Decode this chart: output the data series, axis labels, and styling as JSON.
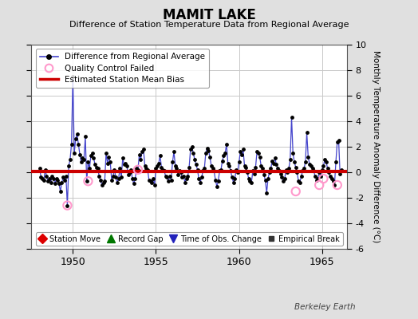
{
  "title": "MAMIT LAKE",
  "subtitle": "Difference of Station Temperature Data from Regional Average",
  "ylabel_right": "Monthly Temperature Anomaly Difference (°C)",
  "bias_value": 0.05,
  "xlim": [
    1947.5,
    1966.5
  ],
  "ylim": [
    -6,
    10
  ],
  "yticks": [
    -6,
    -4,
    -2,
    0,
    2,
    4,
    6,
    8,
    10
  ],
  "xticks": [
    1950,
    1955,
    1960,
    1965
  ],
  "background_color": "#e0e0e0",
  "plot_bg_color": "#ffffff",
  "grid_color": "#c8c8c8",
  "line_color": "#4444cc",
  "dot_color": "#000000",
  "bias_color": "#cc0000",
  "qc_color": "#ff99cc",
  "watermark": "Berkeley Earth",
  "data_x": [
    1948.0,
    1948.083,
    1948.167,
    1948.25,
    1948.333,
    1948.417,
    1948.5,
    1948.583,
    1948.667,
    1948.75,
    1948.833,
    1948.917,
    1949.0,
    1949.083,
    1949.167,
    1949.25,
    1949.333,
    1949.417,
    1949.5,
    1949.583,
    1949.667,
    1949.75,
    1949.833,
    1949.917,
    1950.0,
    1950.083,
    1950.167,
    1950.25,
    1950.333,
    1950.417,
    1950.5,
    1950.583,
    1950.667,
    1950.75,
    1950.833,
    1950.917,
    1951.0,
    1951.083,
    1951.167,
    1951.25,
    1951.333,
    1951.417,
    1951.5,
    1951.583,
    1951.667,
    1951.75,
    1951.833,
    1951.917,
    1952.0,
    1952.083,
    1952.167,
    1952.25,
    1952.333,
    1952.417,
    1952.5,
    1952.583,
    1952.667,
    1952.75,
    1952.833,
    1952.917,
    1953.0,
    1953.083,
    1953.167,
    1953.25,
    1953.333,
    1953.417,
    1953.5,
    1953.583,
    1953.667,
    1953.75,
    1953.833,
    1953.917,
    1954.0,
    1954.083,
    1954.167,
    1954.25,
    1954.333,
    1954.417,
    1954.5,
    1954.583,
    1954.667,
    1954.75,
    1954.833,
    1954.917,
    1955.0,
    1955.083,
    1955.167,
    1955.25,
    1955.333,
    1955.417,
    1955.5,
    1955.583,
    1955.667,
    1955.75,
    1955.833,
    1955.917,
    1956.0,
    1956.083,
    1956.167,
    1956.25,
    1956.333,
    1956.417,
    1956.5,
    1956.583,
    1956.667,
    1956.75,
    1956.833,
    1956.917,
    1957.0,
    1957.083,
    1957.167,
    1957.25,
    1957.333,
    1957.417,
    1957.5,
    1957.583,
    1957.667,
    1957.75,
    1957.833,
    1957.917,
    1958.0,
    1958.083,
    1958.167,
    1958.25,
    1958.333,
    1958.417,
    1958.5,
    1958.583,
    1958.667,
    1958.75,
    1958.833,
    1958.917,
    1959.0,
    1959.083,
    1959.167,
    1959.25,
    1959.333,
    1959.417,
    1959.5,
    1959.583,
    1959.667,
    1959.75,
    1959.833,
    1959.917,
    1960.0,
    1960.083,
    1960.167,
    1960.25,
    1960.333,
    1960.417,
    1960.5,
    1960.583,
    1960.667,
    1960.75,
    1960.833,
    1960.917,
    1961.0,
    1961.083,
    1961.167,
    1961.25,
    1961.333,
    1961.417,
    1961.5,
    1961.583,
    1961.667,
    1961.75,
    1961.833,
    1961.917,
    1962.0,
    1962.083,
    1962.167,
    1962.25,
    1962.333,
    1962.417,
    1962.5,
    1962.583,
    1962.667,
    1962.75,
    1962.833,
    1962.917,
    1963.0,
    1963.083,
    1963.167,
    1963.25,
    1963.333,
    1963.417,
    1963.5,
    1963.583,
    1963.667,
    1963.75,
    1963.833,
    1963.917,
    1964.0,
    1964.083,
    1964.167,
    1964.25,
    1964.333,
    1964.417,
    1964.5,
    1964.583,
    1964.667,
    1964.75,
    1964.833,
    1964.917,
    1965.0,
    1965.083,
    1965.167,
    1965.25,
    1965.333,
    1965.417,
    1965.5,
    1965.583,
    1965.667,
    1965.75,
    1965.833,
    1965.917,
    1966.0,
    1966.083,
    1966.167
  ],
  "data_y": [
    0.3,
    -0.4,
    -0.5,
    -0.6,
    0.2,
    -0.3,
    -0.7,
    -0.5,
    -0.8,
    -0.3,
    -0.5,
    -0.9,
    -0.5,
    -0.6,
    -0.9,
    -1.5,
    -0.8,
    -0.4,
    -0.6,
    -0.3,
    -2.6,
    0.5,
    1.0,
    2.2,
    7.5,
    1.5,
    2.6,
    3.0,
    2.2,
    1.4,
    0.8,
    1.1,
    1.0,
    2.8,
    -0.7,
    0.8,
    0.3,
    1.3,
    1.5,
    1.1,
    0.6,
    0.4,
    0.3,
    -0.3,
    -0.6,
    -1.0,
    -0.8,
    -0.7,
    1.5,
    0.7,
    1.2,
    0.8,
    -0.6,
    -0.3,
    0.2,
    -0.4,
    -0.8,
    -0.5,
    0.3,
    -0.4,
    1.1,
    0.6,
    0.7,
    0.5,
    -0.2,
    0.0,
    0.2,
    -0.5,
    -0.9,
    -0.5,
    0.3,
    0.2,
    1.4,
    1.0,
    1.6,
    1.8,
    0.5,
    0.3,
    0.2,
    -0.6,
    -0.7,
    -0.8,
    -0.5,
    -1.0,
    0.3,
    0.5,
    0.7,
    1.3,
    0.4,
    0.2,
    0.1,
    -0.3,
    -0.4,
    -0.7,
    -0.3,
    -0.6,
    0.8,
    1.6,
    0.5,
    0.3,
    -0.2,
    0.1,
    0.0,
    -0.4,
    -0.3,
    -0.8,
    -0.5,
    -0.3,
    0.4,
    1.8,
    2.0,
    1.5,
    1.0,
    0.6,
    0.2,
    -0.5,
    -0.8,
    -0.4,
    0.1,
    0.3,
    1.5,
    1.9,
    1.7,
    1.2,
    0.5,
    0.3,
    0.1,
    -0.6,
    -1.1,
    -0.7,
    0.1,
    0.2,
    0.9,
    1.3,
    1.5,
    2.2,
    0.7,
    0.5,
    0.1,
    -0.4,
    -0.8,
    -0.5,
    0.2,
    0.0,
    0.8,
    1.6,
    1.4,
    1.8,
    0.5,
    0.4,
    0.0,
    -0.5,
    -0.7,
    -0.8,
    0.1,
    -0.1,
    0.4,
    1.6,
    1.5,
    1.2,
    0.5,
    0.3,
    -0.2,
    -0.6,
    -1.6,
    -0.5,
    0.0,
    0.3,
    0.9,
    0.7,
    1.1,
    0.6,
    0.3,
    0.1,
    -0.1,
    -0.4,
    -0.7,
    -0.5,
    0.2,
    0.0,
    0.3,
    1.0,
    4.3,
    1.5,
    0.8,
    0.4,
    0.0,
    -0.7,
    -0.8,
    -0.3,
    0.1,
    0.3,
    0.8,
    3.1,
    1.2,
    0.6,
    0.5,
    0.3,
    0.1,
    -0.3,
    -0.6,
    -0.5,
    0.0,
    -0.3,
    0.2,
    0.5,
    1.0,
    0.8,
    0.3,
    0.0,
    -0.3,
    -0.5,
    -0.7,
    -1.0,
    0.8,
    2.4,
    2.5,
    -0.1,
    0.2
  ],
  "qc_failed_x": [
    1949.667,
    1950.917,
    1953.917,
    1963.417,
    1964.833,
    1965.083,
    1965.917
  ],
  "qc_failed_y": [
    -2.6,
    -0.7,
    0.2,
    -1.5,
    -1.0,
    -0.5,
    -1.0
  ]
}
